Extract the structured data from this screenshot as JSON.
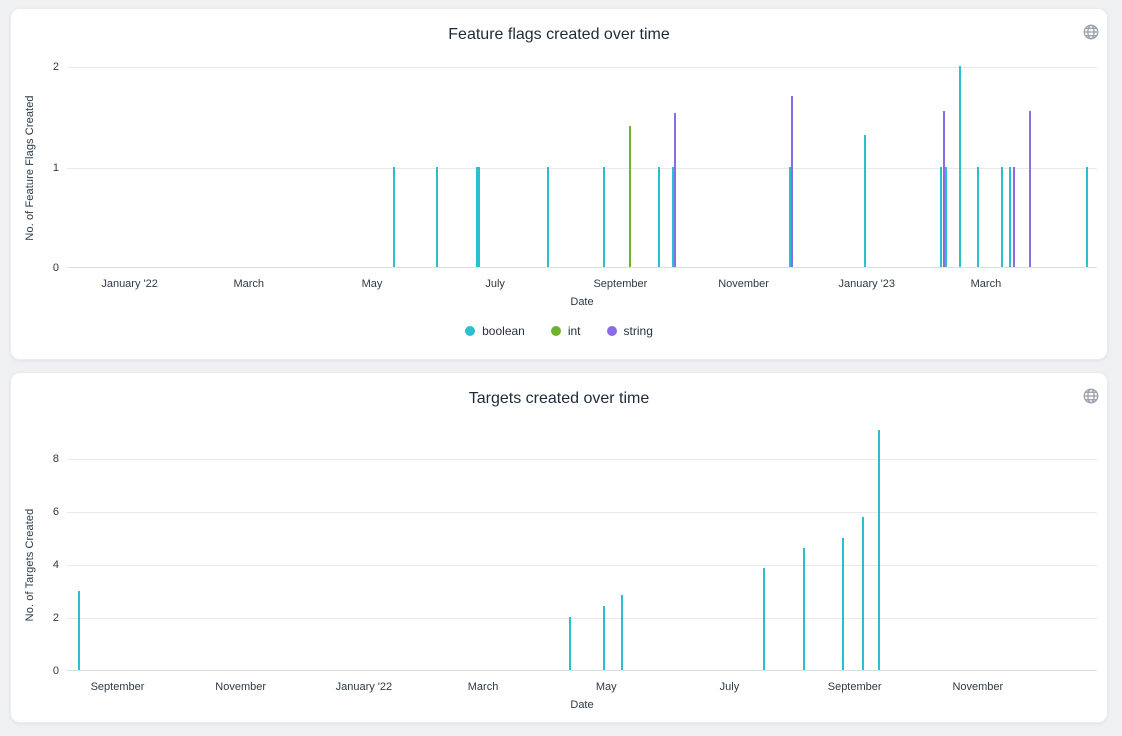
{
  "page": {
    "background": "#eef0f2"
  },
  "icons": {
    "card_corner": "globe-icon"
  },
  "chart_data": [
    {
      "type": "bar",
      "title": "Feature flags created over time",
      "xlabel": "Date",
      "ylabel": "No. of Feature Flags Created",
      "grid": true,
      "legend_position": "bottom",
      "x_domain": [
        "2021-12-01",
        "2023-04-25"
      ],
      "ylim": [
        0,
        2
      ],
      "y_ticks": [
        0,
        1,
        2
      ],
      "x_ticks": [
        {
          "date": "2022-01-01",
          "label": "January '22"
        },
        {
          "date": "2022-03-01",
          "label": "March"
        },
        {
          "date": "2022-05-01",
          "label": "May"
        },
        {
          "date": "2022-07-01",
          "label": "July"
        },
        {
          "date": "2022-09-01",
          "label": "September"
        },
        {
          "date": "2022-11-01",
          "label": "November"
        },
        {
          "date": "2023-01-01",
          "label": "January '23"
        },
        {
          "date": "2023-03-01",
          "label": "March"
        }
      ],
      "series_colors": {
        "boolean": "#2ac0cd",
        "int": "#6fb32a",
        "string": "#8a6de4"
      },
      "legend": [
        {
          "label": "boolean",
          "color": "#2ac0cd"
        },
        {
          "label": "int",
          "color": "#6fb32a"
        },
        {
          "label": "string",
          "color": "#8a6de4"
        }
      ],
      "bars": [
        {
          "date": "2022-05-12",
          "series": "boolean",
          "value": 1
        },
        {
          "date": "2022-06-02",
          "series": "boolean",
          "value": 1
        },
        {
          "date": "2022-06-22",
          "series": "boolean",
          "value": 1
        },
        {
          "date": "2022-06-23",
          "series": "boolean",
          "value": 1
        },
        {
          "date": "2022-07-27",
          "series": "boolean",
          "value": 1
        },
        {
          "date": "2022-08-24",
          "series": "boolean",
          "value": 1
        },
        {
          "date": "2022-09-06",
          "series": "int",
          "value": 1.4
        },
        {
          "date": "2022-09-20",
          "series": "boolean",
          "value": 1
        },
        {
          "date": "2022-09-27",
          "series": "boolean",
          "value": 1
        },
        {
          "date": "2022-09-28",
          "series": "string",
          "value": 1.53
        },
        {
          "date": "2022-11-24",
          "series": "boolean",
          "value": 1
        },
        {
          "date": "2022-11-25",
          "series": "string",
          "value": 1.7
        },
        {
          "date": "2022-12-31",
          "series": "boolean",
          "value": 1.31
        },
        {
          "date": "2023-02-07",
          "series": "boolean",
          "value": 1
        },
        {
          "date": "2023-02-08",
          "series": "string",
          "value": 1.55
        },
        {
          "date": "2023-02-09",
          "series": "boolean",
          "value": 1
        },
        {
          "date": "2023-02-16",
          "series": "boolean",
          "value": 2
        },
        {
          "date": "2023-02-25",
          "series": "boolean",
          "value": 1
        },
        {
          "date": "2023-03-09",
          "series": "boolean",
          "value": 1
        },
        {
          "date": "2023-03-13",
          "series": "boolean",
          "value": 1
        },
        {
          "date": "2023-03-15",
          "series": "string",
          "value": 1
        },
        {
          "date": "2023-03-23",
          "series": "string",
          "value": 1.55
        },
        {
          "date": "2023-04-20",
          "series": "boolean",
          "value": 1
        }
      ]
    },
    {
      "type": "bar",
      "title": "Targets created over time",
      "xlabel": "Date",
      "ylabel": "No. of Targets Created",
      "grid": true,
      "x_domain": [
        "2021-08-07",
        "2022-12-30"
      ],
      "ylim": [
        0,
        9.3
      ],
      "y_ticks": [
        0,
        2,
        4,
        6,
        8
      ],
      "x_ticks": [
        {
          "date": "2021-09-01",
          "label": "September"
        },
        {
          "date": "2021-11-01",
          "label": "November"
        },
        {
          "date": "2022-01-01",
          "label": "January '22"
        },
        {
          "date": "2022-03-01",
          "label": "March"
        },
        {
          "date": "2022-05-01",
          "label": "May"
        },
        {
          "date": "2022-07-01",
          "label": "July"
        },
        {
          "date": "2022-09-01",
          "label": "September"
        },
        {
          "date": "2022-11-01",
          "label": "November"
        }
      ],
      "series_colors": {
        "targets": "#2ac0cd"
      },
      "legend": [],
      "bars": [
        {
          "date": "2021-08-13",
          "series": "targets",
          "value": 3
        },
        {
          "date": "2022-04-13",
          "series": "targets",
          "value": 2
        },
        {
          "date": "2022-04-30",
          "series": "targets",
          "value": 2.4
        },
        {
          "date": "2022-05-09",
          "series": "targets",
          "value": 2.83
        },
        {
          "date": "2022-07-18",
          "series": "targets",
          "value": 3.85
        },
        {
          "date": "2022-08-07",
          "series": "targets",
          "value": 4.6
        },
        {
          "date": "2022-08-26",
          "series": "targets",
          "value": 5
        },
        {
          "date": "2022-09-05",
          "series": "targets",
          "value": 5.77
        },
        {
          "date": "2022-09-13",
          "series": "targets",
          "value": 9.06
        }
      ]
    }
  ]
}
